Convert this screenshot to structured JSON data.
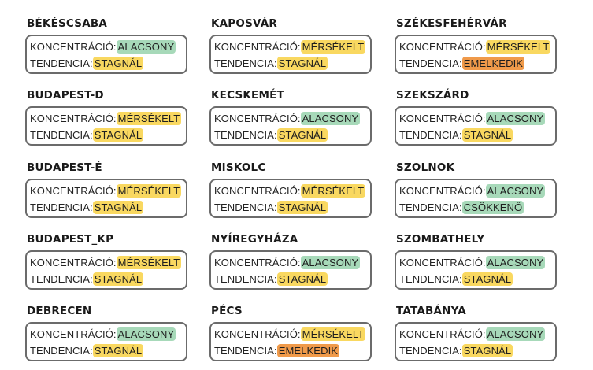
{
  "labels": {
    "concentration": "KONCENTRÁCIÓ:",
    "trend": "TENDENCIA:"
  },
  "colors": {
    "ALACSONY": "#a7d9b9",
    "MÉRSÉKELT": "#f9d860",
    "STAGNÁL": "#f9d860",
    "EMELKEDIK": "#f09a4a",
    "CSÖKKENŐ": "#a7d9b9"
  },
  "cities": [
    {
      "name": "BÉKÉSCSABA",
      "concentration": "ALACSONY",
      "trend": "STAGNÁL"
    },
    {
      "name": "KAPOSVÁR",
      "concentration": "MÉRSÉKELT",
      "trend": "STAGNÁL"
    },
    {
      "name": "SZÉKESFEHÉRVÁR",
      "concentration": "MÉRSÉKELT",
      "trend": "EMELKEDIK"
    },
    {
      "name": "BUDAPEST-D",
      "concentration": "MÉRSÉKELT",
      "trend": "STAGNÁL"
    },
    {
      "name": "KECSKEMÉT",
      "concentration": "ALACSONY",
      "trend": "STAGNÁL"
    },
    {
      "name": "SZEKSZÁRD",
      "concentration": "ALACSONY",
      "trend": "STAGNÁL"
    },
    {
      "name": "BUDAPEST-É",
      "concentration": "MÉRSÉKELT",
      "trend": "STAGNÁL"
    },
    {
      "name": "MISKOLC",
      "concentration": "MÉRSÉKELT",
      "trend": "STAGNÁL"
    },
    {
      "name": "SZOLNOK",
      "concentration": "ALACSONY",
      "trend": "CSÖKKENŐ"
    },
    {
      "name": "BUDAPEST_KP",
      "concentration": "MÉRSÉKELT",
      "trend": "STAGNÁL"
    },
    {
      "name": "NYÍREGYHÁZA",
      "concentration": "ALACSONY",
      "trend": "STAGNÁL"
    },
    {
      "name": "SZOMBATHELY",
      "concentration": "ALACSONY",
      "trend": "STAGNÁL"
    },
    {
      "name": "DEBRECEN",
      "concentration": "ALACSONY",
      "trend": "STAGNÁL"
    },
    {
      "name": "PÉCS",
      "concentration": "MÉRSÉKELT",
      "trend": "EMELKEDIK"
    },
    {
      "name": "TATABÁNYA",
      "concentration": "ALACSONY",
      "trend": "STAGNÁL"
    }
  ]
}
